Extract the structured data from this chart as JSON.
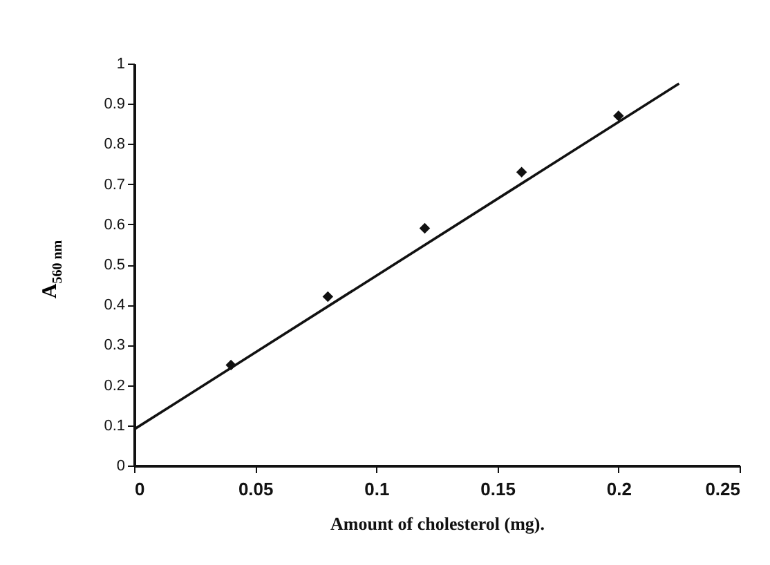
{
  "chart_data": {
    "type": "scatter",
    "xlabel": "Amount of cholesterol  (mg).",
    "ylabel": "A$_{560 nm}$",
    "xlim": [
      0,
      0.25
    ],
    "xticks": [
      0,
      0.05,
      0.1,
      0.15,
      0.2,
      0.25
    ],
    "ylim": [
      0,
      1
    ],
    "yticks": [
      0,
      0.1,
      0.2,
      0.3,
      0.4,
      0.5,
      0.6,
      0.7,
      0.8,
      0.9,
      1
    ],
    "grid": false,
    "series": [
      {
        "type": "scatter",
        "color": "#111111",
        "marker": "diamond",
        "x": [
          0.04,
          0.08,
          0.12,
          0.16,
          0.2
        ],
        "values": [
          0.25,
          0.42,
          0.59,
          0.73,
          0.87
        ]
      },
      {
        "type": "line",
        "color": "#111111",
        "marker": "none",
        "line_style": "solid",
        "x": [
          0,
          0.225
        ],
        "values": [
          0.09,
          0.95
        ]
      }
    ]
  }
}
